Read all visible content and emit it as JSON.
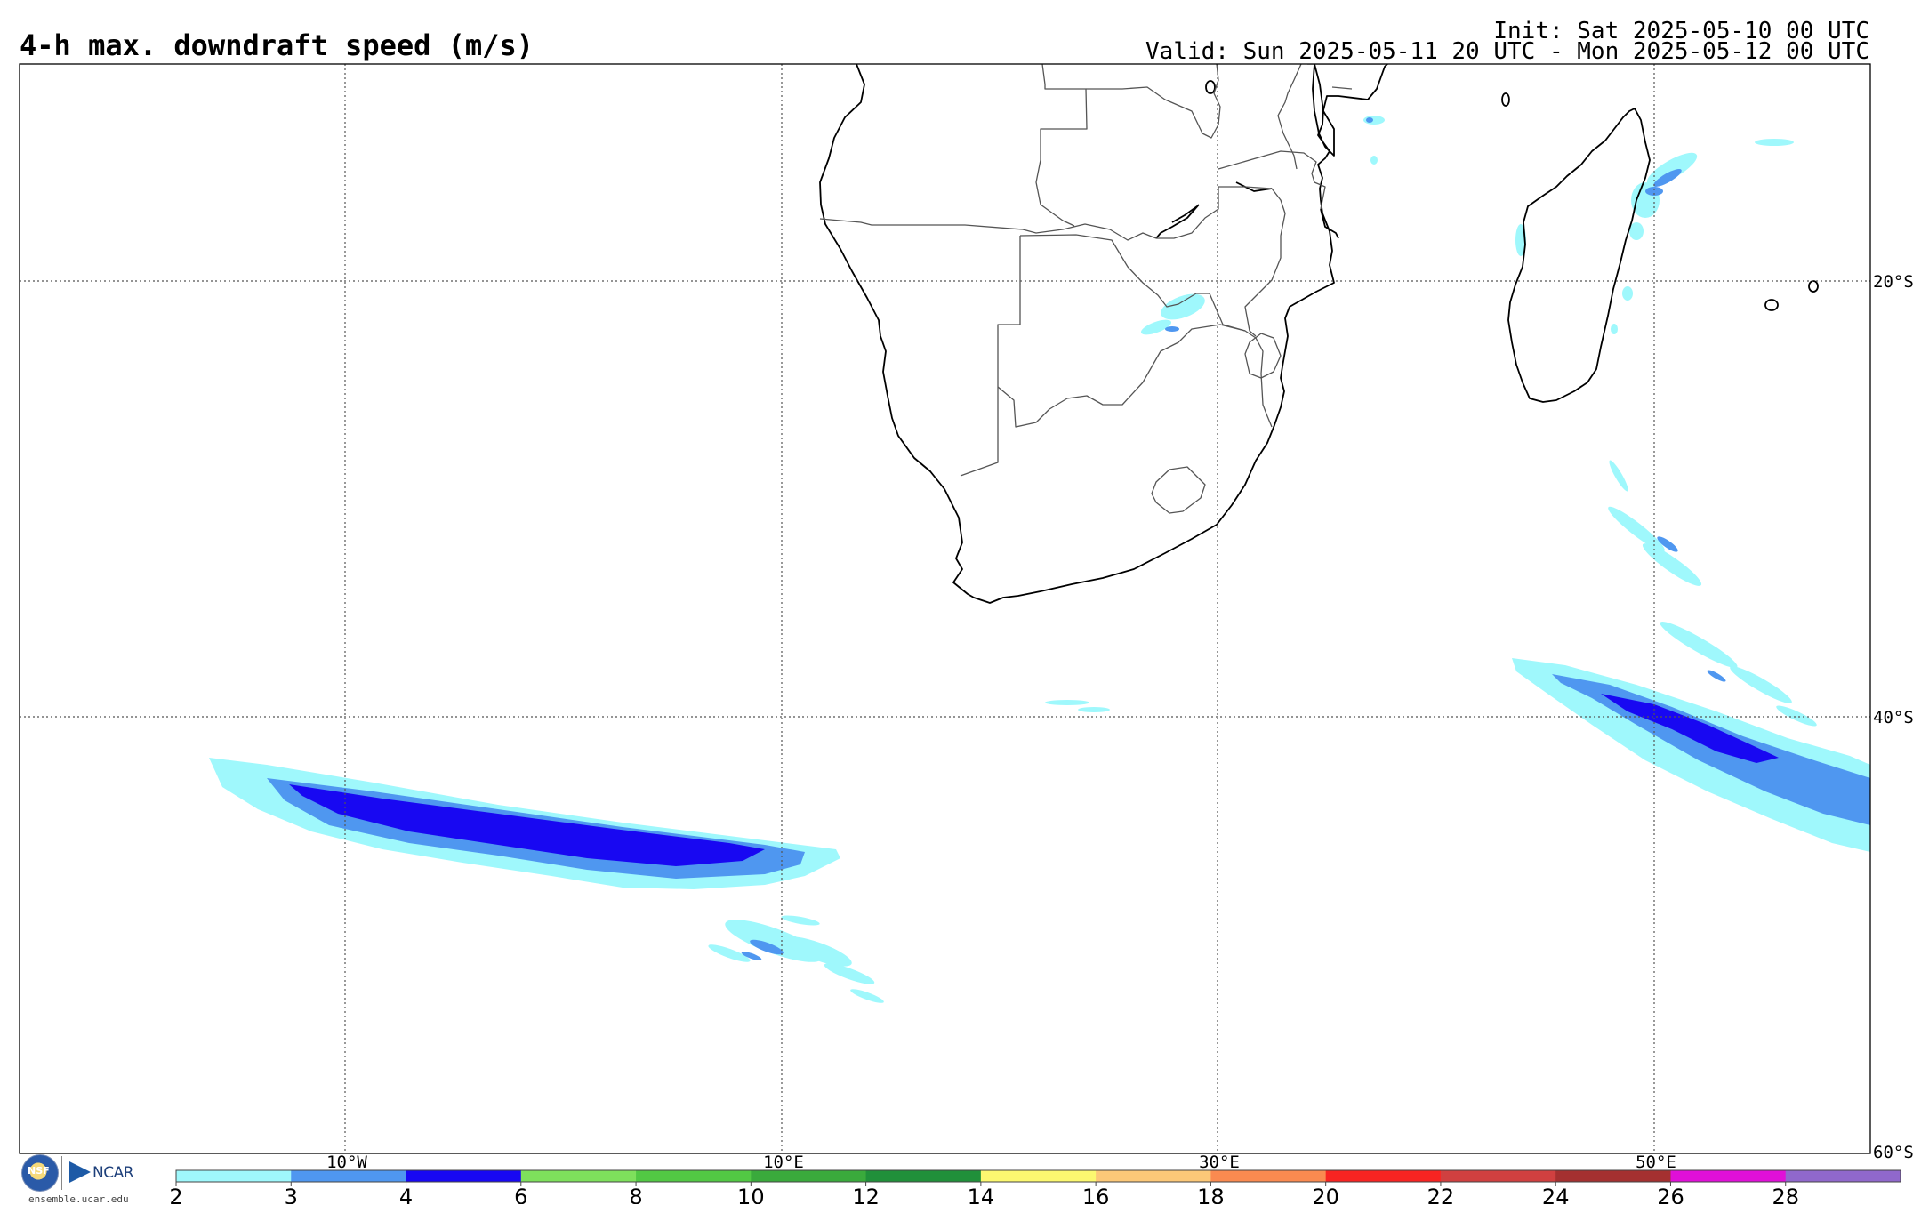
{
  "header": {
    "title": "4-h max. downdraft speed (m/s)",
    "init": "Init: Sat 2025-05-10 00 UTC",
    "valid": "Valid: Sun 2025-05-11 20 UTC - Mon 2025-05-12 00 UTC"
  },
  "map": {
    "lon_labels": [
      "10°W",
      "10°E",
      "30°E",
      "50°E"
    ],
    "lat_labels": [
      "20°S",
      "40°S",
      "60°S"
    ],
    "land_fill": "#ffffff",
    "coast_color": "#000000",
    "border_color": "#555555"
  },
  "colorbar": {
    "ticks": [
      "2",
      "3",
      "4",
      "6",
      "8",
      "10",
      "12",
      "14",
      "16",
      "18",
      "20",
      "22",
      "24",
      "26",
      "28"
    ],
    "colors": [
      "#9ff8fc",
      "#4f97f0",
      "#1808f2",
      "#7ee05c",
      "#52c844",
      "#3aaa3c",
      "#20903a",
      "#fcf870",
      "#fcc878",
      "#fa8a50",
      "#f82422",
      "#d04040",
      "#a43030",
      "#e010d8",
      "#9068cc"
    ]
  },
  "footer": {
    "nsf_label": "NSF",
    "ncar_label": "NCAR",
    "site": "ensemble.ucar.edu"
  }
}
